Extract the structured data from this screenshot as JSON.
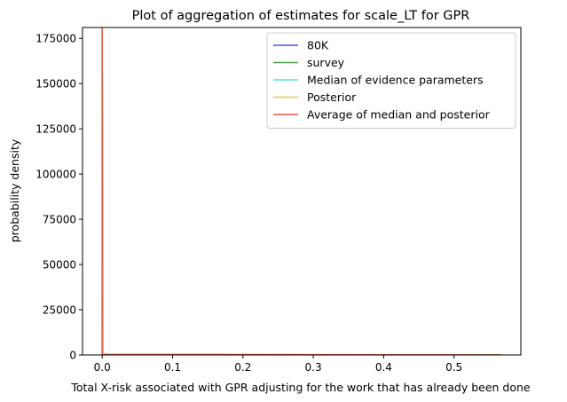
{
  "chart_data": {
    "type": "line",
    "title": "Plot of aggregation of estimates for scale_LT for GPR",
    "xlabel": "Total X-risk associated with GPR adjusting for the work that has already been done",
    "ylabel": "probability density",
    "xlim": [
      -0.028,
      0.595
    ],
    "ylim": [
      0,
      181000
    ],
    "x_ticks": [
      0.0,
      0.1,
      0.2,
      0.3,
      0.4,
      0.5
    ],
    "x_tick_labels": [
      "0.0",
      "0.1",
      "0.2",
      "0.3",
      "0.4",
      "0.5"
    ],
    "y_ticks": [
      0,
      25000,
      50000,
      75000,
      100000,
      125000,
      150000,
      175000
    ],
    "y_tick_labels": [
      "0",
      "25000",
      "50000",
      "75000",
      "100000",
      "125000",
      "150000",
      "175000"
    ],
    "grid": false,
    "legend_position": "upper right",
    "series": [
      {
        "name": "80K",
        "color": "#5555ee",
        "x": [
          0.0,
          0.0,
          0.0005,
          0.567
        ],
        "y": [
          0,
          181000,
          300,
          0
        ]
      },
      {
        "name": "survey",
        "color": "#4aa04a",
        "x": [
          0.0,
          0.0,
          0.0005,
          0.567
        ],
        "y": [
          0,
          181000,
          300,
          0
        ]
      },
      {
        "name": "Median of evidence parameters",
        "color": "#55dddd",
        "x": [
          0.0,
          0.0,
          0.0005,
          0.567
        ],
        "y": [
          0,
          181000,
          300,
          0
        ]
      },
      {
        "name": "Posterior",
        "color": "#ddcc55",
        "x": [
          0.0,
          0.0,
          0.0005,
          0.567
        ],
        "y": [
          0,
          181000,
          300,
          0
        ]
      },
      {
        "name": "Average of median and posterior",
        "color": "#ee5544",
        "x": [
          0.0,
          0.0,
          0.0005,
          0.567
        ],
        "y": [
          0,
          181000,
          300,
          0
        ]
      }
    ]
  }
}
